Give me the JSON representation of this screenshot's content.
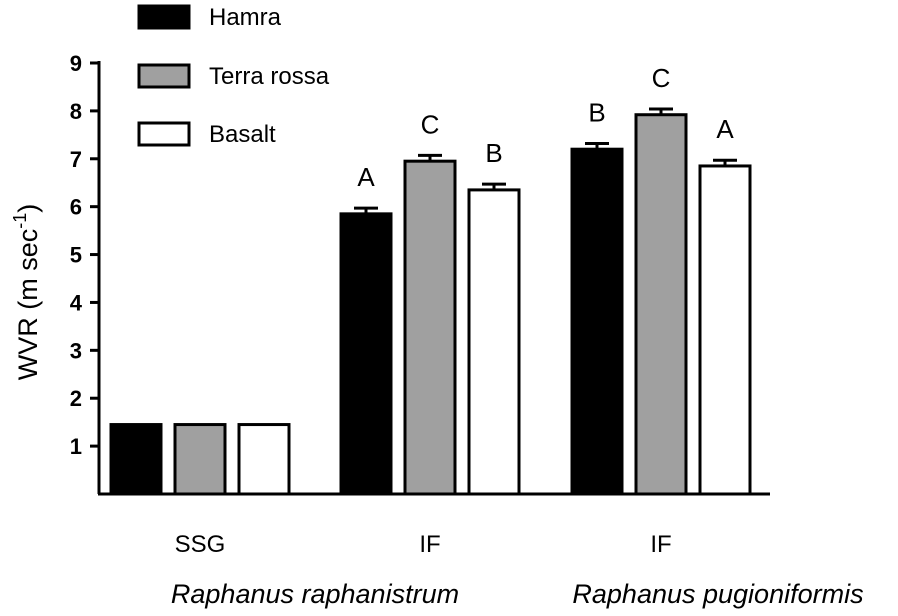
{
  "chart_data": {
    "type": "bar",
    "ylabel": "WVR (m sec",
    "ylabel_sup": "-1",
    "ylabel_close": ")",
    "ylim": [
      0,
      9
    ],
    "yticks": [
      1,
      2,
      3,
      4,
      5,
      6,
      7,
      8,
      9
    ],
    "categories": [
      "SSG",
      "IF",
      "IF"
    ],
    "groups": [
      {
        "label": "Raphanus raphanistrum",
        "categories": [
          0,
          1
        ]
      },
      {
        "label": "Raphanus pugioniformis",
        "categories": [
          2
        ]
      }
    ],
    "series": [
      {
        "name": "Hamra",
        "color": "#000000",
        "values": [
          1.45,
          5.85,
          7.2
        ],
        "errors": [
          0,
          0.12,
          0.12
        ],
        "letters": [
          "",
          "A",
          "B"
        ]
      },
      {
        "name": "Terra rossa",
        "color": "#a0a0a0",
        "values": [
          1.45,
          6.95,
          7.92
        ],
        "errors": [
          0,
          0.12,
          0.12
        ],
        "letters": [
          "",
          "C",
          "C"
        ]
      },
      {
        "name": "Basalt",
        "color": "#ffffff",
        "values": [
          1.45,
          6.35,
          6.85
        ],
        "errors": [
          0,
          0.12,
          0.12
        ],
        "letters": [
          "",
          "B",
          "A"
        ]
      }
    ],
    "legend_position": "top-left",
    "grid": false
  }
}
